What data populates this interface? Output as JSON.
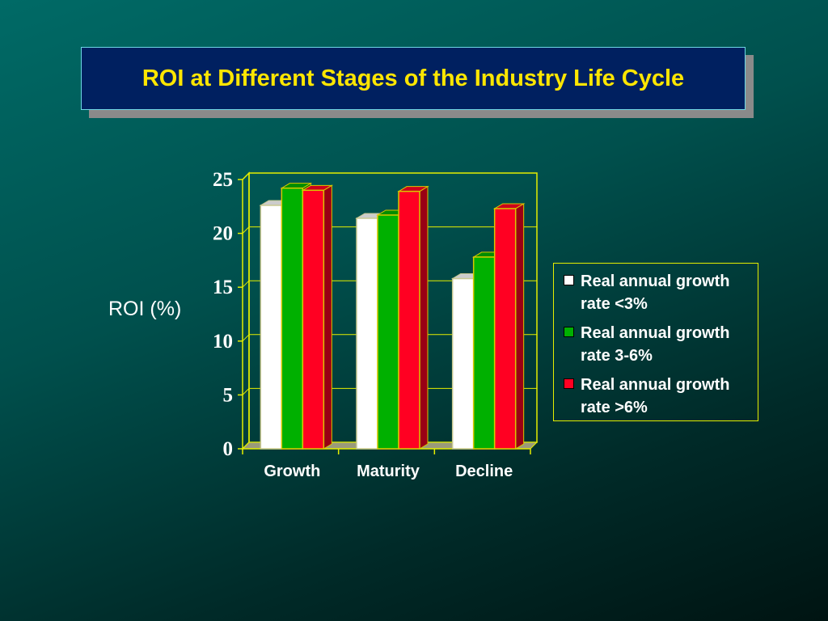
{
  "title": "ROI at Different Stages of the Industry Life Cycle",
  "chart_data": {
    "type": "bar",
    "title": "ROI at Different Stages of the Industry Life Cycle",
    "xlabel": "",
    "ylabel": "ROI (%)",
    "categories": [
      "Growth",
      "Maturity",
      "Decline"
    ],
    "ylim": [
      0,
      25
    ],
    "yticks": [
      0,
      5,
      10,
      15,
      20,
      25
    ],
    "grid": true,
    "legend_position": "right",
    "series": [
      {
        "name": "Real annual growth rate <3%",
        "color": "#ffffff",
        "values": [
          22.6,
          21.4,
          15.8
        ]
      },
      {
        "name": "Real annual growth rate 3-6%",
        "color": "#00b000",
        "values": [
          24.2,
          21.7,
          17.8
        ]
      },
      {
        "name": "Real annual growth rate >6%",
        "color": "#ff0022",
        "values": [
          24.0,
          23.9,
          22.3
        ]
      }
    ]
  },
  "colors": {
    "background": "#00504d",
    "title_bg": "#002060",
    "title_text": "#ffe600",
    "axis": "#e6ee00"
  }
}
